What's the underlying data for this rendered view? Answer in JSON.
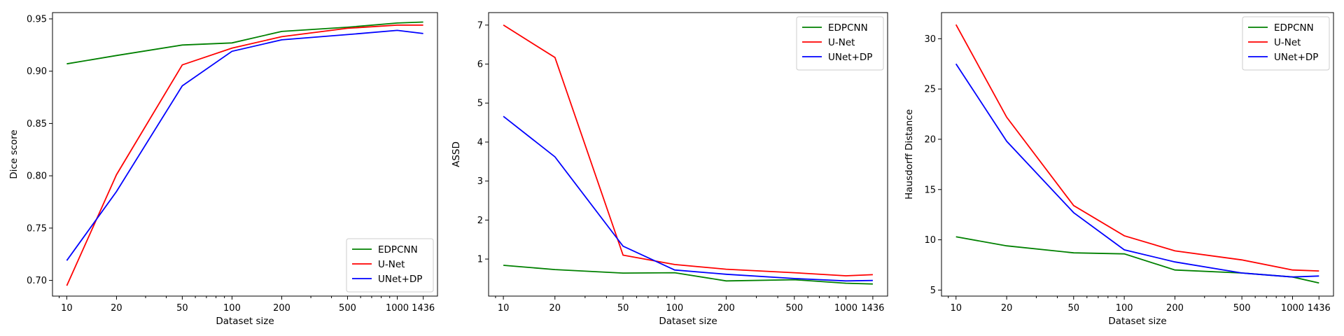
{
  "chart_data": [
    {
      "type": "line",
      "xlabel": "Dataset size",
      "ylabel": "Dice score",
      "x": [
        10,
        20,
        50,
        100,
        200,
        500,
        1000,
        1436
      ],
      "xscale": "log",
      "xticks": [
        10,
        20,
        50,
        100,
        200,
        500,
        1000,
        1436
      ],
      "xtick_labels": [
        "10",
        "20",
        "50",
        "100",
        "200",
        "500",
        "1000",
        "1436"
      ],
      "ylim": [
        0.685,
        0.956
      ],
      "yticks": [
        0.7,
        0.75,
        0.8,
        0.85,
        0.9,
        0.95
      ],
      "ytick_labels": [
        "0.70",
        "0.75",
        "0.80",
        "0.85",
        "0.90",
        "0.95"
      ],
      "legend": "lower-right",
      "grid": false,
      "series": [
        {
          "name": "EDPCNN",
          "color": "#008000",
          "values": [
            0.907,
            0.915,
            0.925,
            0.927,
            0.938,
            0.942,
            0.946,
            0.947
          ]
        },
        {
          "name": "U-Net",
          "color": "#ff0000",
          "values": [
            0.695,
            0.801,
            0.906,
            0.922,
            0.933,
            0.941,
            0.944,
            0.944
          ]
        },
        {
          "name": "UNet+DP",
          "color": "#0000ff",
          "values": [
            0.719,
            0.785,
            0.886,
            0.919,
            0.93,
            0.935,
            0.939,
            0.936
          ]
        }
      ]
    },
    {
      "type": "line",
      "xlabel": "Dataset size",
      "ylabel": "ASSD",
      "x": [
        10,
        20,
        50,
        100,
        200,
        500,
        1000,
        1436
      ],
      "xscale": "log",
      "xticks": [
        10,
        20,
        50,
        100,
        200,
        500,
        1000,
        1436
      ],
      "xtick_labels": [
        "10",
        "20",
        "50",
        "100",
        "200",
        "500",
        "1000",
        "1436"
      ],
      "ylim": [
        0.05,
        7.32
      ],
      "yticks": [
        1,
        2,
        3,
        4,
        5,
        6,
        7
      ],
      "ytick_labels": [
        "1",
        "2",
        "3",
        "4",
        "5",
        "6",
        "7"
      ],
      "legend": "top-right",
      "grid": false,
      "series": [
        {
          "name": "EDPCNN",
          "color": "#008000",
          "values": [
            0.84,
            0.73,
            0.64,
            0.65,
            0.44,
            0.47,
            0.38,
            0.36
          ]
        },
        {
          "name": "U-Net",
          "color": "#ff0000",
          "values": [
            7.0,
            6.17,
            1.1,
            0.86,
            0.74,
            0.65,
            0.57,
            0.6
          ]
        },
        {
          "name": "UNet+DP",
          "color": "#0000ff",
          "values": [
            4.66,
            3.62,
            1.33,
            0.72,
            0.61,
            0.5,
            0.44,
            0.45
          ]
        }
      ]
    },
    {
      "type": "line",
      "xlabel": "Dataset size",
      "ylabel": "Hausdorff Distance",
      "x": [
        10,
        20,
        50,
        100,
        200,
        500,
        1000,
        1436
      ],
      "xscale": "log",
      "xticks": [
        10,
        20,
        50,
        100,
        200,
        500,
        1000,
        1436
      ],
      "xtick_labels": [
        "10",
        "20",
        "50",
        "100",
        "200",
        "500",
        "1000",
        "1436"
      ],
      "ylim": [
        4.4,
        32.6
      ],
      "yticks": [
        5,
        10,
        15,
        20,
        25,
        30
      ],
      "ytick_labels": [
        "5",
        "10",
        "15",
        "20",
        "25",
        "30"
      ],
      "legend": "top-right",
      "grid": false,
      "series": [
        {
          "name": "EDPCNN",
          "color": "#008000",
          "values": [
            10.3,
            9.4,
            8.7,
            8.6,
            7.0,
            6.7,
            6.3,
            5.7
          ]
        },
        {
          "name": "U-Net",
          "color": "#ff0000",
          "values": [
            31.4,
            22.2,
            13.4,
            10.4,
            8.9,
            8.0,
            7.0,
            6.9
          ]
        },
        {
          "name": "UNet+DP",
          "color": "#0000ff",
          "values": [
            27.5,
            19.8,
            12.7,
            9.0,
            7.8,
            6.7,
            6.3,
            6.4
          ]
        }
      ]
    }
  ]
}
